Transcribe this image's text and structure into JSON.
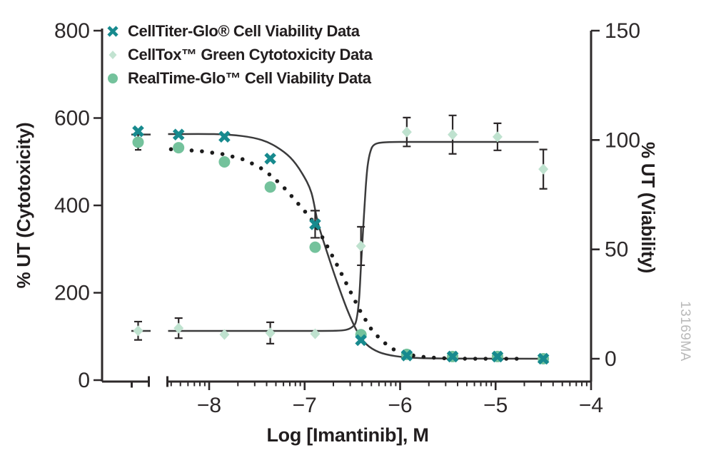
{
  "figure": {
    "watermark": "13169MA",
    "background": "#ffffff"
  },
  "colors": {
    "axis": "#2d292a",
    "curve": "#3b3b3c",
    "text": "#2d292a",
    "dot": "#1c1c1c"
  },
  "legend": {
    "items": [
      {
        "label": "CellTiter-Glo® Cell Viability Data",
        "marker": "x",
        "color": "#178a8e"
      },
      {
        "label": "CellTox™ Green Cytotoxicity Data",
        "marker": "diamond",
        "color": "#c2e3d1"
      },
      {
        "label": "RealTime-Glo™ Cell Viability Data",
        "marker": "circle",
        "color": "#74c29c"
      }
    ]
  },
  "axes": {
    "x": {
      "title": "Log [Imantinib], M",
      "scale": "log10 molar",
      "has_break": true,
      "tick_values": [
        -8,
        -7,
        -6,
        -5,
        -4
      ],
      "tick_labels": [
        "−8",
        "−7",
        "−6",
        "−5",
        "−4"
      ],
      "range": [
        -8.43,
        -4
      ]
    },
    "y_left": {
      "title": "% UT (Cytotoxicity)",
      "range": [
        0,
        800
      ],
      "tick_values": [
        0,
        200,
        400,
        600,
        800
      ],
      "tick_labels": [
        "0",
        "200",
        "400",
        "600",
        "800"
      ]
    },
    "y_right": {
      "title": "% UT (Viability)",
      "range": [
        0,
        150
      ],
      "tick_values": [
        0,
        50,
        100,
        150
      ],
      "tick_labels": [
        "0",
        "50",
        "100",
        "150"
      ]
    }
  },
  "chart_data": {
    "type": "scatter",
    "xlabel": "Log [Imantinib], M",
    "note_untreated": "leftmost points sit before the x-axis break (untreated control)",
    "log_conc": [
      -8.32,
      -7.84,
      -7.36,
      -6.89,
      -6.41,
      -5.93,
      -5.45,
      -4.98,
      -4.5
    ],
    "series": [
      {
        "id": "celltiter",
        "name": "CellTiter-Glo® Cell Viability Data",
        "marker": "x",
        "color": "#178a8e",
        "axis": "right",
        "untreated": {
          "value": 104,
          "err": 0
        },
        "values": [
          102.5,
          101.5,
          91.5,
          61.5,
          8.5,
          1.5,
          1,
          1,
          0
        ],
        "errors": [
          0,
          0,
          0,
          6.2,
          0,
          0,
          0,
          0,
          0
        ]
      },
      {
        "id": "celltox",
        "name": "CellTox™ Green Cytotoxicity Data",
        "marker": "diamond",
        "color": "#bfe2cf",
        "axis": "left",
        "untreated": {
          "value": 113,
          "err": 21
        },
        "values": [
          119,
          104.5,
          108,
          106,
          307,
          568,
          562,
          557,
          483
        ],
        "errors": [
          23,
          0,
          24.5,
          0,
          44,
          33,
          44,
          31,
          45
        ]
      },
      {
        "id": "realtime",
        "name": "RealTime-Glo™ Cell Viability Data",
        "marker": "circle",
        "color": "#74c29c",
        "axis": "right",
        "untreated": {
          "value": 99,
          "err": 3.5
        },
        "values": [
          96.5,
          90,
          78.5,
          51,
          11,
          2,
          1,
          1,
          0
        ],
        "errors": [
          0,
          0,
          0,
          0,
          0,
          0,
          0,
          0,
          0
        ]
      }
    ],
    "fits": [
      {
        "id": "celltiter-fit",
        "style": "solid",
        "axis": "right",
        "untreated_value": 102.5,
        "points": [
          [
            -8.43,
            102.7
          ],
          [
            -7.95,
            102.7
          ],
          [
            -7.65,
            101.8
          ],
          [
            -7.45,
            100
          ],
          [
            -7.3,
            97
          ],
          [
            -7.15,
            92
          ],
          [
            -7.03,
            85
          ],
          [
            -6.93,
            76
          ],
          [
            -6.86,
            62
          ],
          [
            -6.76,
            48
          ],
          [
            -6.66,
            35
          ],
          [
            -6.55,
            22
          ],
          [
            -6.45,
            12.5
          ],
          [
            -6.35,
            6.5
          ],
          [
            -6.22,
            3
          ],
          [
            -6.05,
            1.2
          ],
          [
            -5.85,
            0.4
          ],
          [
            -5.5,
            0.1
          ],
          [
            -4.53,
            0
          ]
        ]
      },
      {
        "id": "celltox-fit",
        "style": "solid",
        "axis": "left",
        "untreated_value": 112.7,
        "points": [
          [
            -8.43,
            112.7
          ],
          [
            -7.5,
            112.7
          ],
          [
            -6.9,
            112.7
          ],
          [
            -6.68,
            113
          ],
          [
            -6.57,
            115
          ],
          [
            -6.5,
            122
          ],
          [
            -6.46,
            136
          ],
          [
            -6.43,
            185
          ],
          [
            -6.41,
            261
          ],
          [
            -6.385,
            354
          ],
          [
            -6.36,
            442
          ],
          [
            -6.34,
            491
          ],
          [
            -6.31,
            524
          ],
          [
            -6.27,
            539
          ],
          [
            -6.18,
            544
          ],
          [
            -6.0,
            545.3
          ],
          [
            -5.5,
            545.3
          ],
          [
            -4.55,
            545.3
          ]
        ]
      },
      {
        "id": "realtime-fit",
        "style": "dotted",
        "axis": "right",
        "untreated_value": null,
        "points": [
          [
            -8.4,
            95.8
          ],
          [
            -8.1,
            95
          ],
          [
            -7.85,
            93.5
          ],
          [
            -7.63,
            91
          ],
          [
            -7.47,
            87.5
          ],
          [
            -7.33,
            83
          ],
          [
            -7.2,
            77.5
          ],
          [
            -7.07,
            71
          ],
          [
            -6.97,
            66
          ],
          [
            -6.89,
            61.5
          ],
          [
            -6.77,
            52
          ],
          [
            -6.65,
            42
          ],
          [
            -6.53,
            31.5
          ],
          [
            -6.42,
            22
          ],
          [
            -6.31,
            14
          ],
          [
            -6.2,
            8.5
          ],
          [
            -6.08,
            4.5
          ],
          [
            -5.95,
            2.2
          ],
          [
            -5.8,
            1
          ],
          [
            -5.6,
            0.3
          ],
          [
            -5.3,
            0
          ],
          [
            -5.0,
            0
          ],
          [
            -4.72,
            0
          ]
        ]
      }
    ]
  }
}
